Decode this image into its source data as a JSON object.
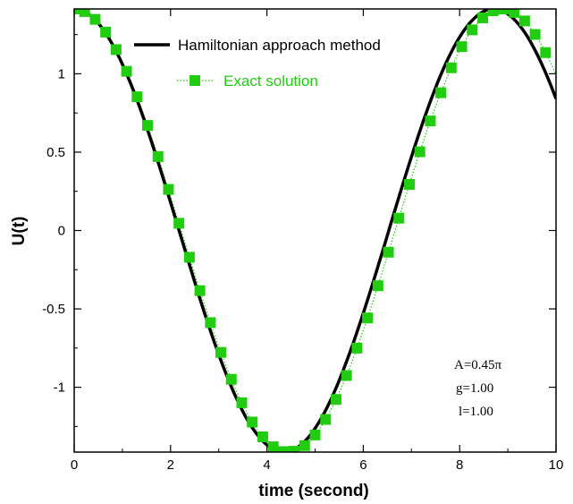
{
  "chart_data": {
    "type": "line",
    "xlabel": "time (second)",
    "ylabel": "U(t)",
    "xlim": [
      0,
      10
    ],
    "ylim": [
      -1.4137,
      1.4137
    ],
    "x_ticks": [
      0,
      2,
      4,
      6,
      8,
      10
    ],
    "x_tick_labels": [
      "0",
      "2",
      "4",
      "6",
      "8",
      "10"
    ],
    "y_ticks": [
      1,
      0.5,
      0,
      -0.5,
      -1
    ],
    "y_tick_labels": [
      "1",
      "0.5",
      "0",
      "-0.5",
      "-1"
    ],
    "grid": false,
    "legend_position": "top",
    "colors": {
      "hamiltonian": "#000000",
      "exact": "#22cc11"
    },
    "series": [
      {
        "name": "Hamiltonian approach method",
        "style": "solid-line",
        "amplitude": 1.4137,
        "angular_frequency": 0.7217,
        "x_start": 0,
        "x_end": 10,
        "points": 201
      },
      {
        "name": "Exact solution",
        "style": "dotted-line-square-markers",
        "amplitude": 1.4137,
        "angular_frequency": 0.7075,
        "x_start": 0,
        "x_end": 10,
        "marker_step": 0.2174
      }
    ],
    "annotations": [
      "A=0.45π",
      "g=1.00",
      "l=1.00"
    ]
  }
}
